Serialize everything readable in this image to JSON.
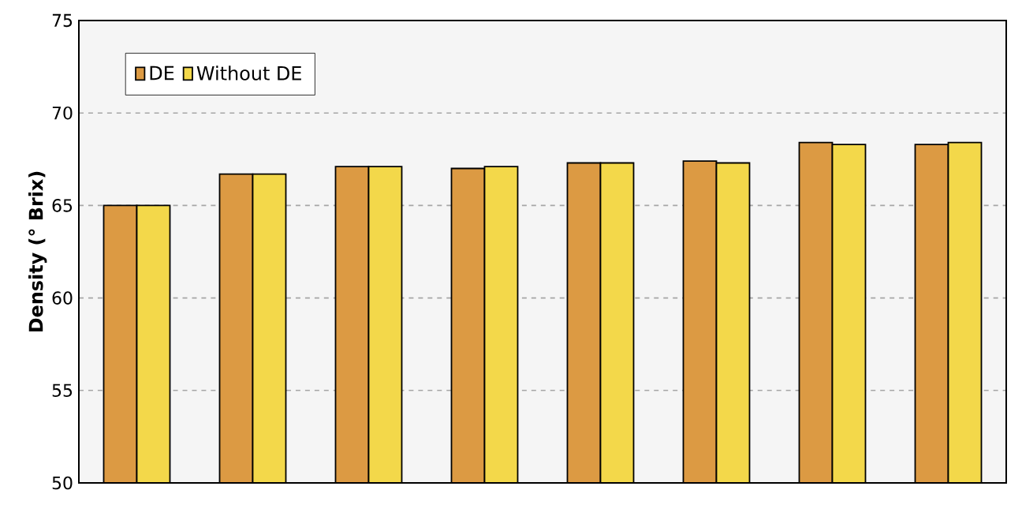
{
  "chart_data": {
    "type": "bar",
    "ylabel": "Density (° Brix)",
    "categories": [
      null,
      null,
      null,
      null,
      null,
      null,
      null,
      null
    ],
    "series": [
      {
        "name": "DE",
        "color": "#dc9a43",
        "values": [
          65.0,
          66.7,
          67.1,
          67.0,
          67.3,
          67.4,
          68.4,
          68.3
        ]
      },
      {
        "name": "Without DE",
        "color": "#f3d84a",
        "values": [
          65.0,
          66.7,
          67.1,
          67.1,
          67.3,
          67.3,
          68.3,
          68.4
        ]
      }
    ],
    "ylim": [
      50,
      75
    ],
    "yticks": [
      50,
      55,
      60,
      65,
      70,
      75
    ],
    "grid": "y",
    "legend": "top left"
  }
}
